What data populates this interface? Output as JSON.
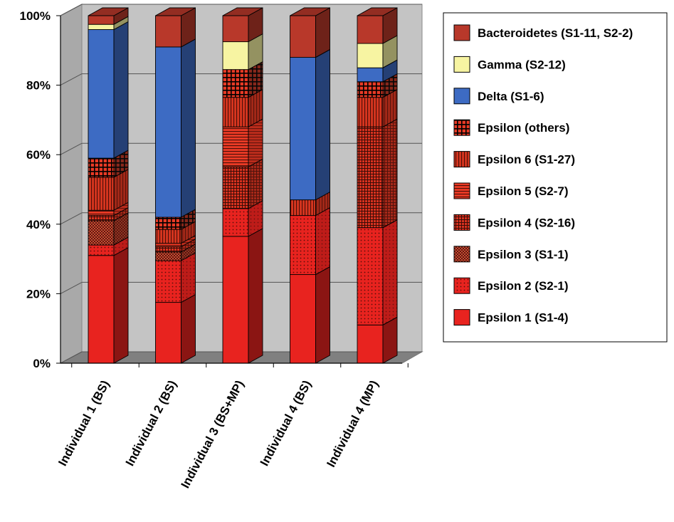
{
  "chart_data": {
    "type": "bar",
    "stacked": true,
    "percent": true,
    "three_d": true,
    "categories": [
      "Individual 1 (BS)",
      "Individual 2 (BS)",
      "Individual 3 (BS+MP)",
      "Individual 4 (BS)",
      "Individual 4 (MP)"
    ],
    "series": [
      {
        "name": "Epsilon 1 (S1-4)",
        "color": "#e8231f",
        "pattern": "solid",
        "values": [
          31,
          17.5,
          36.5,
          25.5,
          11
        ]
      },
      {
        "name": "Epsilon 2 (S2-1)",
        "color": "#e8231f",
        "pattern": "dots",
        "values": [
          3,
          12,
          8,
          17,
          28
        ]
      },
      {
        "name": "Epsilon 3 (S1-1)",
        "color": "#8b2a1c",
        "pattern": "checker",
        "values": [
          7,
          2.5,
          0,
          0,
          0
        ]
      },
      {
        "name": "Epsilon 4 (S2-16)",
        "color": "#b5311f",
        "pattern": "grid",
        "values": [
          1.5,
          1.5,
          12,
          0,
          29
        ]
      },
      {
        "name": "Epsilon 5 (S2-7)",
        "color": "#d92f1f",
        "pattern": "hlines",
        "values": [
          1.5,
          1,
          11.5,
          0,
          0
        ]
      },
      {
        "name": "Epsilon 6 (S1-27)",
        "color": "#a82c1c",
        "pattern": "vlines",
        "values": [
          9.5,
          4,
          8.5,
          4.5,
          8.5
        ]
      },
      {
        "name": "Epsilon (others)",
        "color": "#1a1a1a",
        "pattern": "bigcheck",
        "values": [
          5.5,
          3.5,
          8,
          0,
          4.5
        ]
      },
      {
        "name": "Delta (S1-6)",
        "color": "#3d6bc3",
        "pattern": "solid",
        "values": [
          37,
          49,
          0,
          41,
          4
        ]
      },
      {
        "name": "Gamma (S2-12)",
        "color": "#f7f4a2",
        "pattern": "solid",
        "values": [
          1.5,
          0,
          8,
          0,
          7
        ]
      },
      {
        "name": "Bacteroidetes (S1-11, S2-2)",
        "color": "#b8382a",
        "pattern": "solid",
        "values": [
          2.5,
          9,
          7.5,
          12,
          8
        ]
      }
    ],
    "yticks": [
      "0%",
      "20%",
      "40%",
      "60%",
      "80%",
      "100%"
    ],
    "ylim": [
      0,
      100
    ],
    "grid": true,
    "legend_position": "right",
    "title": "",
    "xlabel": "",
    "ylabel": ""
  }
}
